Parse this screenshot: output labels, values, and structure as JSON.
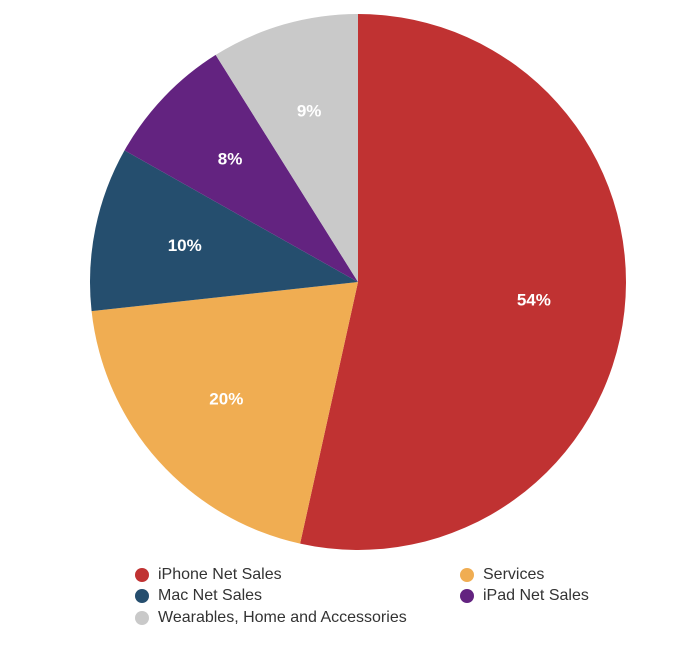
{
  "chart_data": {
    "type": "pie",
    "title": "",
    "legend_position": "bottom",
    "start_angle_deg": 0,
    "direction": "clockwise",
    "slices": [
      {
        "label": "iPhone Net Sales",
        "value": 54,
        "value_label": "54%",
        "color": "#c03232"
      },
      {
        "label": "Services",
        "value": 20,
        "value_label": "20%",
        "color": "#f0ad52"
      },
      {
        "label": "Mac Net Sales",
        "value": 10,
        "value_label": "10%",
        "color": "#254e6e"
      },
      {
        "label": "iPad Net Sales",
        "value": 8,
        "value_label": "8%",
        "color": "#632380"
      },
      {
        "label": "Wearables, Home and Accessories",
        "value": 9,
        "value_label": "9%",
        "color": "#c9c9c9"
      }
    ],
    "legend": [
      {
        "label": "iPhone Net Sales",
        "color": "#c03232"
      },
      {
        "label": "Services",
        "color": "#f0ad52"
      },
      {
        "label": "Mac Net Sales",
        "color": "#254e6e"
      },
      {
        "label": "iPad Net Sales",
        "color": "#632380"
      },
      {
        "label": "Wearables, Home and Accessories",
        "color": "#c9c9c9"
      }
    ]
  }
}
